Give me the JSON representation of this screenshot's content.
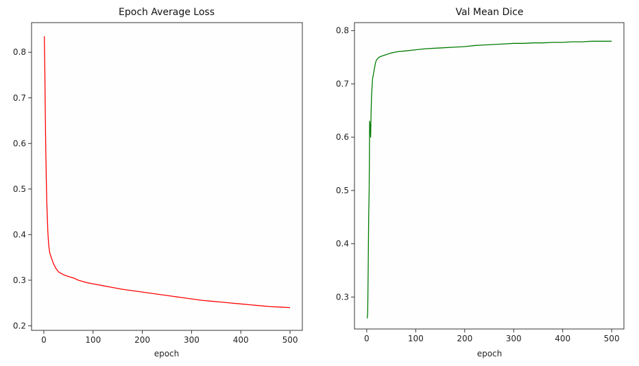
{
  "chart_data": [
    {
      "type": "line",
      "title": "Epoch Average Loss",
      "xlabel": "epoch",
      "ylabel": "",
      "xlim": [
        -25,
        525
      ],
      "ylim": [
        0.19,
        0.865
      ],
      "xticks": [
        0,
        100,
        200,
        300,
        400,
        500
      ],
      "yticks": [
        0.2,
        0.3,
        0.4,
        0.5,
        0.6,
        0.7,
        0.8
      ],
      "grid": false,
      "legend": "none",
      "series": [
        {
          "color": "#ff0000",
          "x": [
            1,
            2,
            3,
            4,
            5,
            6,
            7,
            8,
            9,
            10,
            12,
            15,
            20,
            25,
            30,
            40,
            50,
            60,
            70,
            80,
            90,
            100,
            120,
            140,
            160,
            180,
            200,
            220,
            240,
            260,
            280,
            300,
            320,
            340,
            360,
            380,
            400,
            420,
            440,
            460,
            480,
            500
          ],
          "y": [
            0.835,
            0.76,
            0.66,
            0.58,
            0.52,
            0.47,
            0.44,
            0.41,
            0.39,
            0.375,
            0.36,
            0.35,
            0.335,
            0.325,
            0.318,
            0.312,
            0.308,
            0.305,
            0.3,
            0.297,
            0.294,
            0.292,
            0.288,
            0.284,
            0.28,
            0.277,
            0.274,
            0.271,
            0.268,
            0.265,
            0.262,
            0.259,
            0.256,
            0.254,
            0.252,
            0.25,
            0.248,
            0.246,
            0.244,
            0.242,
            0.241,
            0.24
          ]
        }
      ]
    },
    {
      "type": "line",
      "title": "Val Mean Dice",
      "xlabel": "epoch",
      "ylabel": "",
      "xlim": [
        -25,
        525
      ],
      "ylim": [
        0.24,
        0.815
      ],
      "xticks": [
        0,
        100,
        200,
        300,
        400,
        500
      ],
      "yticks": [
        0.3,
        0.4,
        0.5,
        0.6,
        0.7,
        0.8
      ],
      "grid": false,
      "legend": "none",
      "series": [
        {
          "color": "#007a00",
          "x": [
            1,
            2,
            3,
            4,
            5,
            6,
            7,
            8,
            9,
            10,
            12,
            14,
            16,
            18,
            20,
            25,
            30,
            40,
            50,
            60,
            80,
            100,
            120,
            140,
            160,
            180,
            200,
            220,
            240,
            260,
            280,
            300,
            320,
            340,
            360,
            380,
            400,
            420,
            440,
            460,
            480,
            500
          ],
          "y": [
            0.26,
            0.27,
            0.35,
            0.45,
            0.5,
            0.63,
            0.62,
            0.6,
            0.65,
            0.68,
            0.71,
            0.72,
            0.73,
            0.74,
            0.745,
            0.75,
            0.752,
            0.755,
            0.758,
            0.76,
            0.762,
            0.764,
            0.766,
            0.767,
            0.768,
            0.769,
            0.77,
            0.772,
            0.773,
            0.774,
            0.775,
            0.776,
            0.776,
            0.777,
            0.777,
            0.778,
            0.778,
            0.779,
            0.779,
            0.78,
            0.78,
            0.78
          ]
        }
      ]
    }
  ]
}
